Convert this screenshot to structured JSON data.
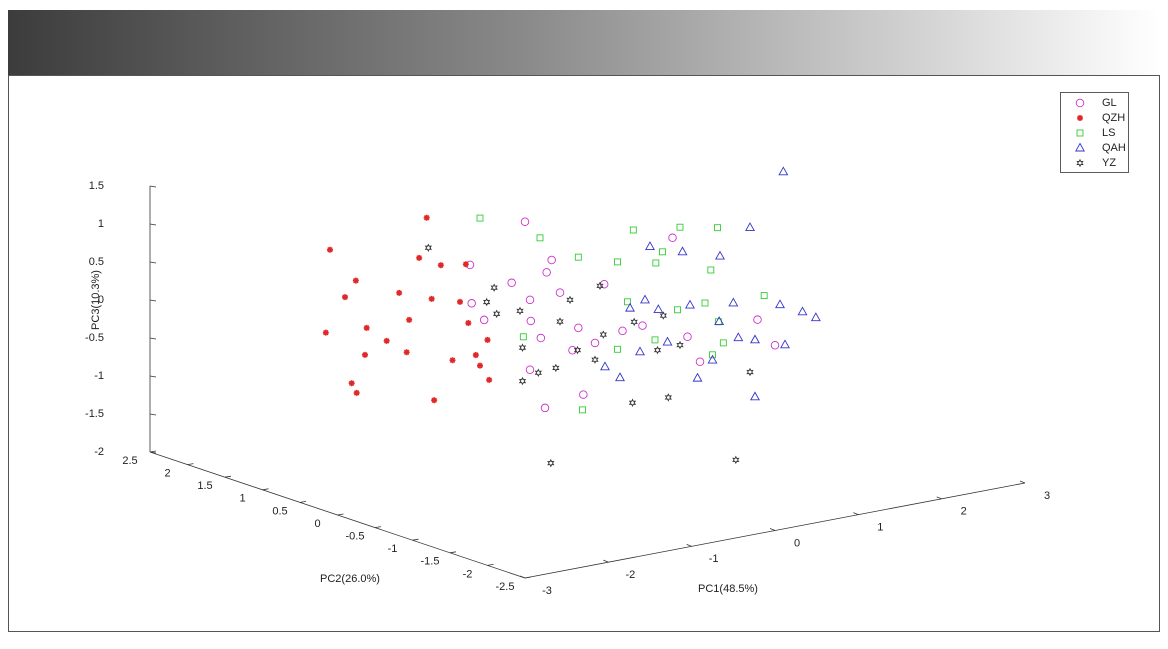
{
  "chart_data": {
    "type": "scatter3d",
    "xlabel": "PC1(48.5%)",
    "ylabel": "PC2(26.0%)",
    "zlabel": "PC3(10.3%)",
    "xlim": [
      -3,
      3
    ],
    "xticks": [
      -3,
      -2,
      -1,
      0,
      1,
      2,
      3
    ],
    "ylim": [
      -2.5,
      2.5
    ],
    "yticks": [
      -2.5,
      -2,
      -1.5,
      -1,
      -0.5,
      0,
      0.5,
      1,
      1.5,
      2,
      2.5
    ],
    "zlim": [
      -2,
      1.5
    ],
    "zticks": [
      -2,
      -1.5,
      -1,
      -0.5,
      0,
      0.5,
      1,
      1.5
    ],
    "legend": "upper right",
    "series": [
      {
        "name": "GL",
        "color": "#cc33cc",
        "marker": "o",
        "x": [
          -0.75,
          -0.49,
          -0.43,
          -0.91,
          -0.69,
          -1.41,
          -1.39,
          -1.24,
          -0.68,
          -0.56,
          -0.33,
          -0.11,
          -0.18,
          0.09,
          0.2,
          0.42,
          0.66,
          1.02,
          1.2,
          1.35,
          2.25,
          2.04,
          -0.69,
          -0.05,
          -0.51
        ],
        "y": [
          0,
          0,
          0,
          0,
          0,
          0,
          0,
          0,
          0,
          0,
          0,
          0,
          0,
          0,
          0,
          0,
          0,
          0,
          0,
          0,
          0,
          0,
          0,
          0,
          0
        ],
        "z": [
          1.39,
          0.67,
          0.82,
          0.62,
          0.35,
          0.96,
          0.45,
          0.2,
          0.07,
          -0.18,
          0.37,
          -0.14,
          -0.42,
          -0.38,
          0.37,
          -0.29,
          -0.27,
          0.81,
          -0.53,
          -0.89,
          -0.86,
          -0.48,
          -0.57,
          -1.03,
          -1.11
        ]
      },
      {
        "name": "QZH",
        "color": "#e02828",
        "marker": "*",
        "x": [
          -1.74,
          -0.58,
          -1.43,
          -1.56,
          -1.79,
          -1.3,
          -1.06,
          -1.32,
          -0.82,
          -0.91,
          -0.67,
          -0.41,
          -0.11,
          -0.52,
          -0.18,
          -0.79,
          -0.08,
          0.15,
          -0.27,
          0.06,
          -1.48,
          -1.42,
          -0.49,
          0.01,
          0.17
        ],
        "y": [
          1.5,
          1.5,
          1.5,
          1.5,
          1.5,
          1.5,
          1.5,
          1.5,
          1.5,
          1.5,
          1.5,
          1.5,
          1.5,
          1.5,
          1.5,
          1.5,
          1.5,
          1.5,
          1.5,
          1.5,
          1.5,
          1.5,
          1.5,
          1.5,
          1.5
        ],
        "z": [
          0.73,
          0.91,
          0.26,
          0.07,
          -0.35,
          -0.39,
          -0.61,
          -0.74,
          -0.81,
          -0.01,
          0.4,
          0.25,
          0.2,
          -0.17,
          -0.28,
          -0.39,
          -0.58,
          -0.85,
          -1.03,
          -1.17,
          -1.08,
          -1.22,
          -1.51,
          -1.02,
          -1.38
        ]
      },
      {
        "name": "LS",
        "color": "#33cc33",
        "marker": "s",
        "x": [
          -1.74,
          -1.02,
          0.1,
          0.66,
          1.11,
          0.45,
          -0.56,
          -0.09,
          0.37,
          1.03,
          1.67,
          0.96,
          0.03,
          0.63,
          0.36,
          -0.09,
          1.18,
          1.05,
          -1.22,
          -0.51,
          1.12
        ],
        "y": [
          -0.5,
          -0.5,
          -0.5,
          -0.5,
          -0.5,
          -0.5,
          -0.5,
          -0.5,
          -0.5,
          -0.5,
          -0.5,
          -0.5,
          -0.5,
          -0.5,
          -0.5,
          -0.5,
          -0.5,
          -0.5,
          -0.5,
          -0.5,
          -0.5
        ],
        "z": [
          1.81,
          1.4,
          1.27,
          1.19,
          1.09,
          0.91,
          1.05,
          0.89,
          0.78,
          0.55,
          0.08,
          0.13,
          0.34,
          0.11,
          -0.23,
          -0.26,
          -0.44,
          -0.57,
          0.14,
          -0.97,
          -0.15
        ]
      },
      {
        "name": "QAH",
        "color": "#3333cc",
        "marker": "^",
        "x": [
          1.45,
          1.05,
          -0.15,
          0.24,
          0.69,
          -0.21,
          -0.05,
          -0.39,
          0.33,
          0.85,
          1.41,
          1.68,
          1.84,
          0.68,
          0.91,
          1.11,
          1.47,
          0.06,
          -0.27,
          0.6,
          -0.69,
          -0.51,
          0.42,
          1.11
        ],
        "y": [
          -1,
          -1,
          -1,
          -1,
          -1,
          -1,
          -1,
          -1,
          -1,
          -1,
          -1,
          -1,
          -1,
          -1,
          -1,
          -1,
          -1,
          -1,
          -1,
          -1,
          -1,
          -1,
          -1,
          -1
        ],
        "z": [
          1.92,
          1.27,
          1.27,
          1.12,
          0.97,
          0.58,
          0.42,
          0.51,
          0.4,
          0.32,
          0.18,
          0.03,
          -0.08,
          0.11,
          -0.15,
          -0.22,
          -0.36,
          -0.03,
          -0.09,
          -0.38,
          -0.2,
          -0.38,
          -0.58,
          -0.97
        ]
      },
      {
        "name": "YZ",
        "color": "#333333",
        "marker": "h",
        "x": [
          -1.46,
          -0.76,
          -0.67,
          -0.64,
          -0.36,
          -0.33,
          -0.14,
          -0.33,
          0.07,
          0.12,
          0.24,
          0.6,
          0.64,
          1.01,
          1.29,
          1.36,
          1.42,
          0.99,
          0.33,
          0.01,
          2.23,
          2.4,
          1.56,
          0.54
        ],
        "y": [
          0.5,
          0.5,
          0.5,
          0.5,
          0.5,
          0.5,
          0.5,
          0.5,
          0.5,
          0.5,
          0.5,
          0.5,
          0.5,
          0.5,
          0.5,
          0.5,
          0.5,
          0.5,
          0.5,
          0.5,
          0.5,
          0.5,
          0.5,
          0.5
        ],
        "z": [
          1.03,
          0.17,
          0.34,
          -0.01,
          -0.03,
          -0.52,
          -0.89,
          -0.96,
          -0.87,
          -0.27,
          -0.01,
          0.1,
          -0.55,
          -0.46,
          -0.89,
          -0.45,
          -1.54,
          -1.52,
          -0.69,
          -2.11,
          -2.53,
          -1.41,
          -0.88,
          -0.86
        ]
      }
    ]
  }
}
